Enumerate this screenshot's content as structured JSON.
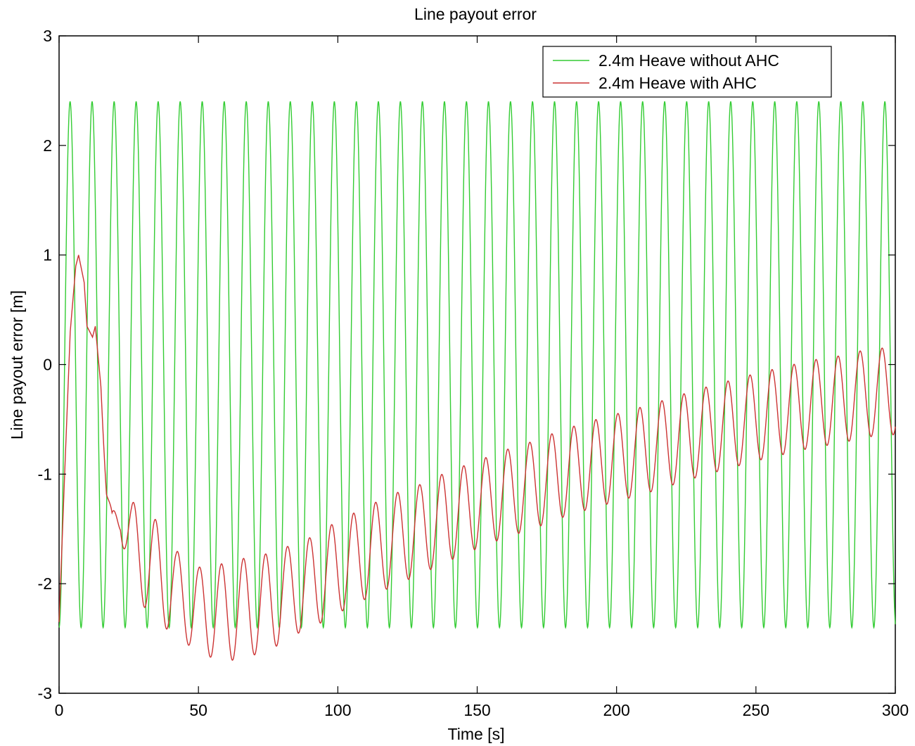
{
  "chart_data": {
    "type": "line",
    "title": "Line payout error",
    "xlabel": "Time [s]",
    "ylabel": "Line payout error [m]",
    "xlim": [
      0,
      300
    ],
    "ylim": [
      -3,
      3
    ],
    "xticks": [
      0,
      50,
      100,
      150,
      200,
      250,
      300
    ],
    "yticks": [
      -3,
      -2,
      -1,
      0,
      1,
      2,
      3
    ],
    "grid": false,
    "legend_position": "top-right",
    "series": [
      {
        "name": "2.4m Heave without AHC",
        "color": "#33cc33",
        "description_type": "sinusoid",
        "amplitude": 2.4,
        "period": 7.9,
        "t_start": 0,
        "t_end": 300
      },
      {
        "name": "2.4m Heave with AHC",
        "color": "#cc3333",
        "x": [
          0,
          2,
          4,
          6,
          7,
          9,
          10,
          12,
          13,
          15,
          17,
          19,
          22,
          26,
          30,
          34,
          38,
          42,
          46,
          50,
          54,
          58,
          62,
          66,
          70,
          74,
          78,
          82,
          86,
          90,
          95,
          100,
          110,
          120,
          130,
          140,
          150,
          160,
          170,
          180,
          190,
          200,
          210,
          220,
          230,
          240,
          250,
          260,
          270,
          280,
          290,
          300
        ],
        "y": [
          -2.35,
          -1.0,
          0.3,
          0.9,
          1.0,
          0.75,
          0.35,
          0.25,
          0.35,
          -0.2,
          -1.2,
          -1.55,
          -1.3,
          -1.65,
          -1.75,
          -1.85,
          -1.95,
          -2.1,
          -2.15,
          -2.25,
          -2.25,
          -2.25,
          -2.25,
          -2.22,
          -2.2,
          -2.18,
          -2.12,
          -2.08,
          -2.03,
          -2.0,
          -1.92,
          -1.85,
          -1.72,
          -1.6,
          -1.5,
          -1.38,
          -1.28,
          -1.18,
          -1.1,
          -1.0,
          -0.92,
          -0.85,
          -0.78,
          -0.7,
          -0.62,
          -0.55,
          -0.48,
          -0.42,
          -0.36,
          -0.32,
          -0.26,
          -0.24
        ],
        "oscillation_amplitude": [
          0,
          0,
          0,
          0,
          0,
          0,
          0,
          0,
          0,
          0,
          0.1,
          0.2,
          0.25,
          0.4,
          0.45,
          0.45,
          0.45,
          0.4,
          0.4,
          0.4,
          0.42,
          0.43,
          0.45,
          0.45,
          0.45,
          0.45,
          0.45,
          0.42,
          0.42,
          0.42,
          0.42,
          0.42,
          0.42,
          0.42,
          0.41,
          0.41,
          0.4,
          0.4,
          0.4,
          0.4,
          0.4,
          0.4,
          0.4,
          0.4,
          0.4,
          0.4,
          0.4,
          0.4,
          0.4,
          0.4,
          0.4,
          0.4
        ],
        "oscillation_period": 7.9
      }
    ]
  }
}
